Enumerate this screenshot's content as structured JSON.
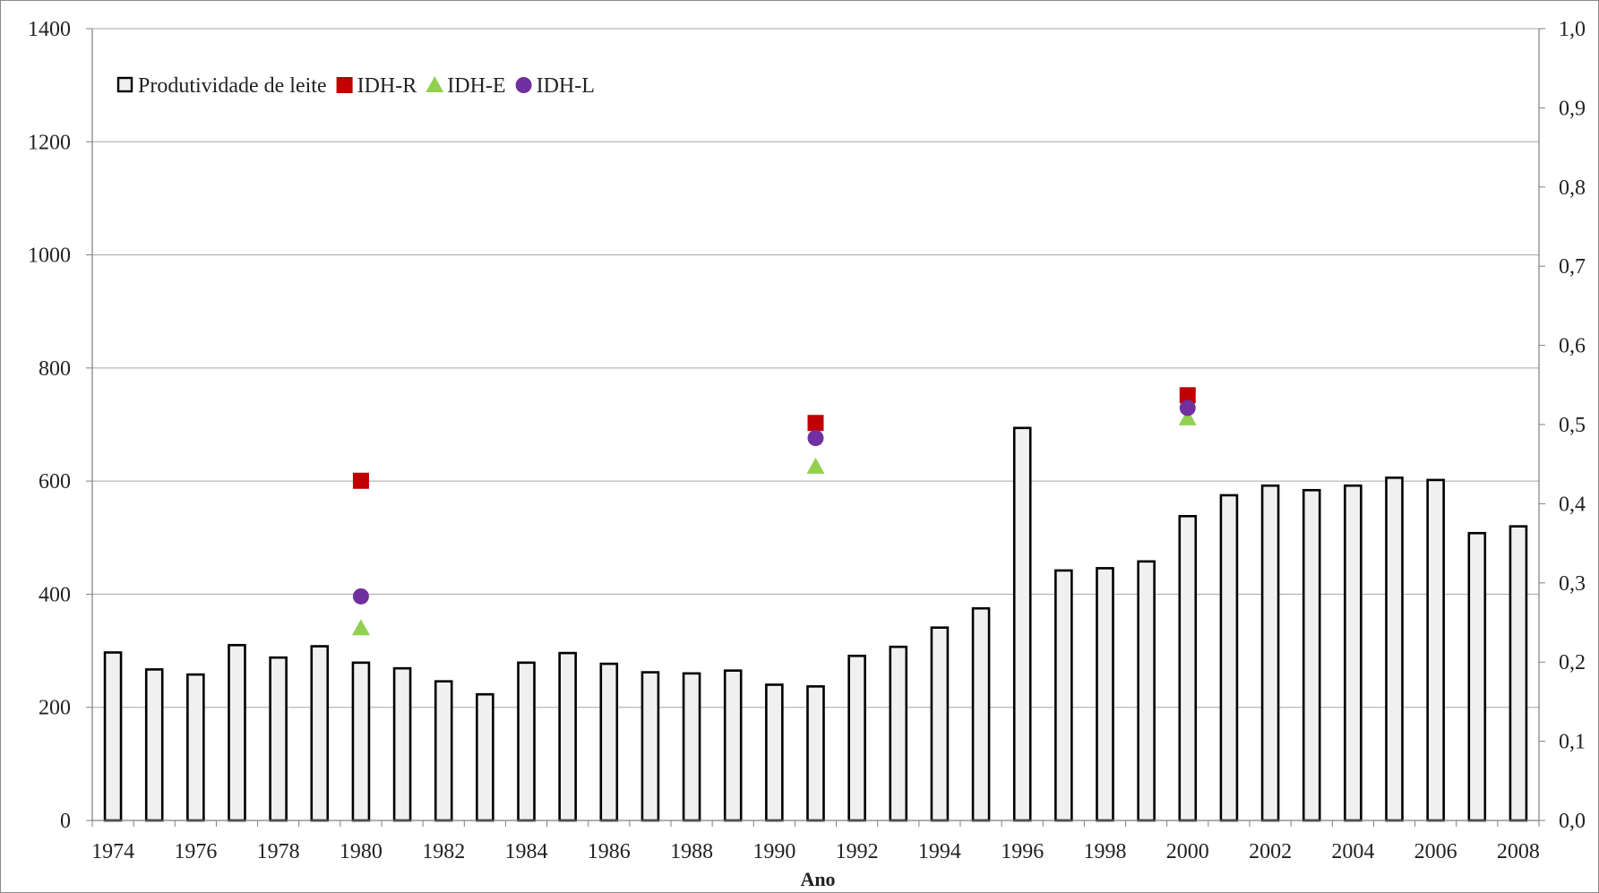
{
  "chart_data": {
    "type": "bar",
    "title": "",
    "xlabel": "Ano",
    "ylabel": "",
    "ylabel_right": "",
    "ylim": [
      0,
      1400
    ],
    "ylim_right": [
      0.0,
      1.0
    ],
    "y_ticks": [
      "0",
      "200",
      "400",
      "600",
      "800",
      "1000",
      "1200",
      "1400"
    ],
    "y_ticks_right": [
      "0,0",
      "0,1",
      "0,2",
      "0,3",
      "0,4",
      "0,5",
      "0,6",
      "0,7",
      "0,8",
      "0,9",
      "1,0"
    ],
    "categories": [
      "1974",
      "1975",
      "1976",
      "1977",
      "1978",
      "1979",
      "1980",
      "1981",
      "1982",
      "1983",
      "1984",
      "1985",
      "1986",
      "1987",
      "1988",
      "1989",
      "1990",
      "1991",
      "1992",
      "1993",
      "1994",
      "1995",
      "1996",
      "1997",
      "1998",
      "1999",
      "2000",
      "2001",
      "2002",
      "2003",
      "2004",
      "2005",
      "2006",
      "2007",
      "2008"
    ],
    "x_tick_labels": [
      "1974",
      "1976",
      "1978",
      "1980",
      "1982",
      "1984",
      "1986",
      "1988",
      "1990",
      "1992",
      "1994",
      "1996",
      "1998",
      "2000",
      "2002",
      "2004",
      "2006",
      "2008"
    ],
    "grid": "horizontal",
    "legend_position": "top-left",
    "series": [
      {
        "name": "Produtividade de leite",
        "type": "bar",
        "axis": "left",
        "color": "#f0f0f0",
        "stroke": "#000000",
        "values": [
          297,
          267,
          258,
          310,
          288,
          308,
          279,
          269,
          246,
          223,
          279,
          296,
          277,
          262,
          260,
          265,
          240,
          237,
          291,
          307,
          341,
          375,
          694,
          442,
          446,
          458,
          538,
          575,
          592,
          584,
          592,
          606,
          602,
          508,
          520
        ]
      },
      {
        "name": "IDH-R",
        "type": "scatter",
        "axis": "right",
        "marker": "square",
        "color": "#c00000",
        "points": [
          {
            "x": "1980",
            "y": 0.429
          },
          {
            "x": "1991",
            "y": 0.502
          },
          {
            "x": "2000",
            "y": 0.537
          }
        ]
      },
      {
        "name": "IDH-E",
        "type": "scatter",
        "axis": "right",
        "marker": "triangle",
        "color": "#92d050",
        "points": [
          {
            "x": "1980",
            "y": 0.243
          },
          {
            "x": "1991",
            "y": 0.447
          },
          {
            "x": "2000",
            "y": 0.508
          }
        ]
      },
      {
        "name": "IDH-L",
        "type": "scatter",
        "axis": "right",
        "marker": "circle",
        "color": "#7030a0",
        "points": [
          {
            "x": "1980",
            "y": 0.283
          },
          {
            "x": "1991",
            "y": 0.483
          },
          {
            "x": "2000",
            "y": 0.521
          }
        ]
      }
    ]
  }
}
